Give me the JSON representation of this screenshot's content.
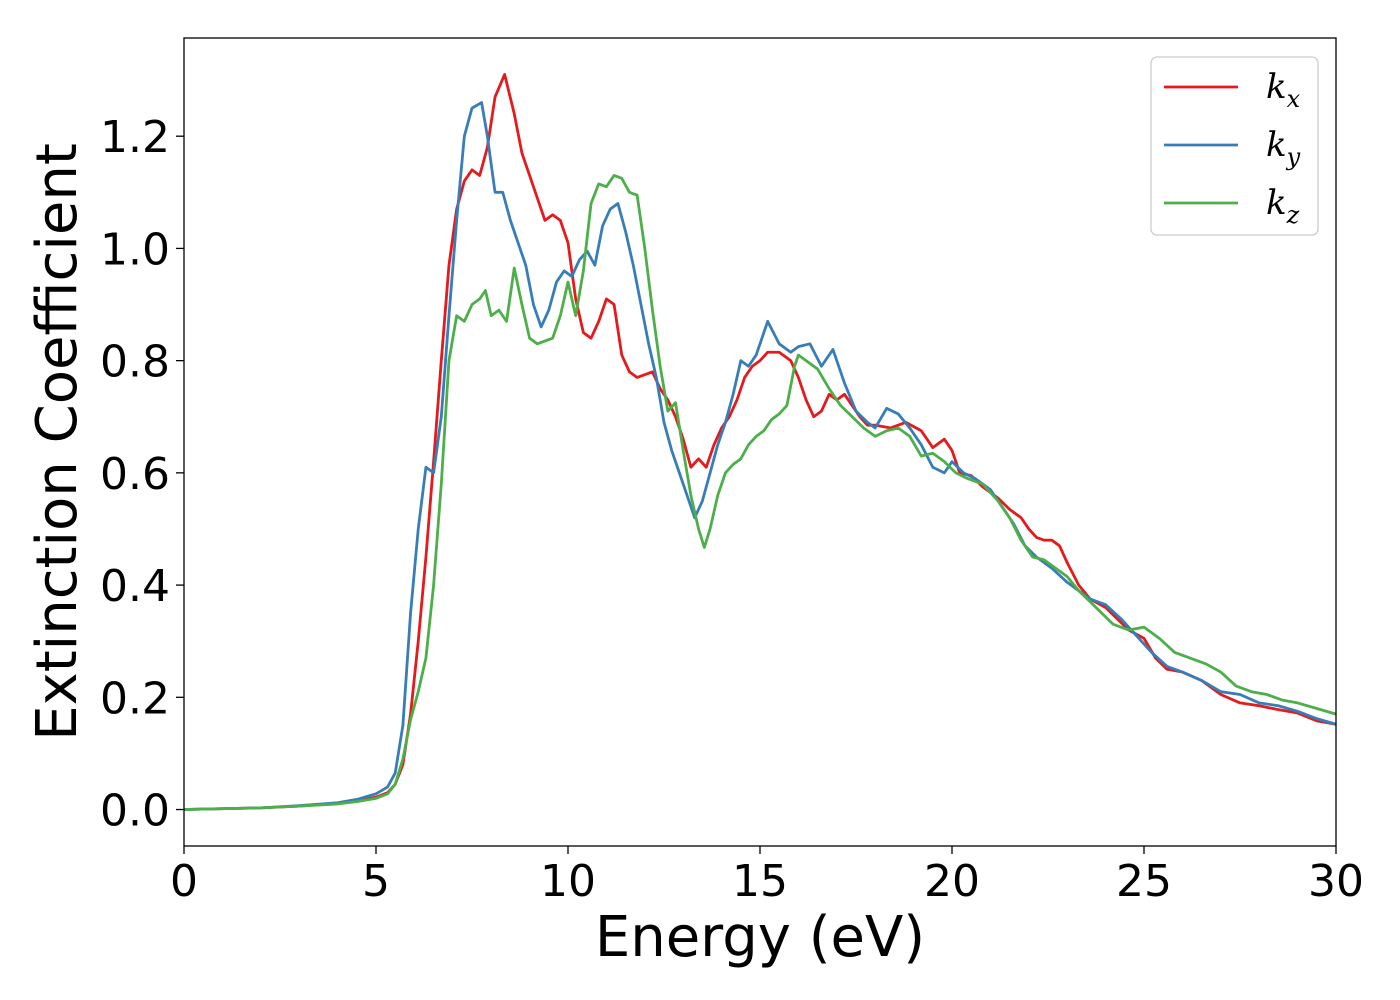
{
  "chart_data": {
    "type": "line",
    "xlabel": "Energy (eV)",
    "ylabel": "Extinction Coefficient",
    "xlim": [
      0,
      30
    ],
    "ylim": [
      -0.065,
      1.375
    ],
    "xticks": [
      0,
      5,
      10,
      15,
      20,
      25,
      30
    ],
    "yticks": [
      0.0,
      0.2,
      0.4,
      0.6,
      0.8,
      1.0,
      1.2
    ],
    "xtick_labels": [
      "0",
      "5",
      "10",
      "15",
      "20",
      "25",
      "30"
    ],
    "ytick_labels": [
      "0.0",
      "0.2",
      "0.4",
      "0.6",
      "0.8",
      "1.0",
      "1.2"
    ],
    "grid": false,
    "legend_position": "top-right",
    "series": [
      {
        "name": "k",
        "subscript": "x",
        "color": "#e41a1c",
        "points": [
          [
            0,
            0.0
          ],
          [
            2,
            0.003
          ],
          [
            3,
            0.006
          ],
          [
            4,
            0.011
          ],
          [
            4.5,
            0.015
          ],
          [
            5,
            0.022
          ],
          [
            5.3,
            0.03
          ],
          [
            5.5,
            0.045
          ],
          [
            5.7,
            0.08
          ],
          [
            5.9,
            0.17
          ],
          [
            6.1,
            0.3
          ],
          [
            6.3,
            0.45
          ],
          [
            6.5,
            0.62
          ],
          [
            6.7,
            0.8
          ],
          [
            6.9,
            0.97
          ],
          [
            7.1,
            1.07
          ],
          [
            7.3,
            1.12
          ],
          [
            7.5,
            1.14
          ],
          [
            7.7,
            1.13
          ],
          [
            7.9,
            1.18
          ],
          [
            8.1,
            1.27
          ],
          [
            8.35,
            1.31
          ],
          [
            8.6,
            1.24
          ],
          [
            8.8,
            1.17
          ],
          [
            9.0,
            1.13
          ],
          [
            9.2,
            1.09
          ],
          [
            9.4,
            1.05
          ],
          [
            9.6,
            1.06
          ],
          [
            9.8,
            1.05
          ],
          [
            10.0,
            1.01
          ],
          [
            10.2,
            0.91
          ],
          [
            10.4,
            0.85
          ],
          [
            10.6,
            0.84
          ],
          [
            10.8,
            0.87
          ],
          [
            11.0,
            0.91
          ],
          [
            11.2,
            0.9
          ],
          [
            11.4,
            0.81
          ],
          [
            11.6,
            0.78
          ],
          [
            11.8,
            0.77
          ],
          [
            12.0,
            0.775
          ],
          [
            12.2,
            0.78
          ],
          [
            12.4,
            0.75
          ],
          [
            12.6,
            0.73
          ],
          [
            12.8,
            0.7
          ],
          [
            13.0,
            0.66
          ],
          [
            13.2,
            0.61
          ],
          [
            13.4,
            0.625
          ],
          [
            13.6,
            0.61
          ],
          [
            13.8,
            0.65
          ],
          [
            14.0,
            0.68
          ],
          [
            14.2,
            0.7
          ],
          [
            14.4,
            0.73
          ],
          [
            14.6,
            0.77
          ],
          [
            14.8,
            0.79
          ],
          [
            15.0,
            0.8
          ],
          [
            15.2,
            0.815
          ],
          [
            15.5,
            0.815
          ],
          [
            15.8,
            0.8
          ],
          [
            16.0,
            0.77
          ],
          [
            16.2,
            0.73
          ],
          [
            16.4,
            0.7
          ],
          [
            16.6,
            0.71
          ],
          [
            16.8,
            0.74
          ],
          [
            17.0,
            0.73
          ],
          [
            17.2,
            0.74
          ],
          [
            17.4,
            0.72
          ],
          [
            17.6,
            0.7
          ],
          [
            17.8,
            0.685
          ],
          [
            18.0,
            0.685
          ],
          [
            18.4,
            0.68
          ],
          [
            18.8,
            0.69
          ],
          [
            19.2,
            0.675
          ],
          [
            19.5,
            0.645
          ],
          [
            19.8,
            0.66
          ],
          [
            20.0,
            0.64
          ],
          [
            20.2,
            0.6
          ],
          [
            20.5,
            0.595
          ],
          [
            20.8,
            0.575
          ],
          [
            21.2,
            0.555
          ],
          [
            21.5,
            0.535
          ],
          [
            21.8,
            0.52
          ],
          [
            22.0,
            0.5
          ],
          [
            22.2,
            0.485
          ],
          [
            22.4,
            0.48
          ],
          [
            22.6,
            0.48
          ],
          [
            22.8,
            0.47
          ],
          [
            23.0,
            0.44
          ],
          [
            23.3,
            0.4
          ],
          [
            23.6,
            0.375
          ],
          [
            24.0,
            0.36
          ],
          [
            24.3,
            0.34
          ],
          [
            24.6,
            0.32
          ],
          [
            25.0,
            0.305
          ],
          [
            25.3,
            0.27
          ],
          [
            25.6,
            0.25
          ],
          [
            26.0,
            0.245
          ],
          [
            26.5,
            0.23
          ],
          [
            27.0,
            0.205
          ],
          [
            27.5,
            0.19
          ],
          [
            28.0,
            0.185
          ],
          [
            28.5,
            0.178
          ],
          [
            29.0,
            0.172
          ],
          [
            29.5,
            0.158
          ],
          [
            30.0,
            0.152
          ]
        ]
      },
      {
        "name": "k",
        "subscript": "y",
        "color": "#377eb8",
        "points": [
          [
            0,
            0.0
          ],
          [
            2,
            0.003
          ],
          [
            3,
            0.007
          ],
          [
            4,
            0.012
          ],
          [
            4.5,
            0.018
          ],
          [
            5,
            0.028
          ],
          [
            5.3,
            0.04
          ],
          [
            5.5,
            0.065
          ],
          [
            5.7,
            0.15
          ],
          [
            5.9,
            0.35
          ],
          [
            6.1,
            0.5
          ],
          [
            6.3,
            0.61
          ],
          [
            6.5,
            0.6
          ],
          [
            6.7,
            0.7
          ],
          [
            6.9,
            0.88
          ],
          [
            7.1,
            1.05
          ],
          [
            7.3,
            1.2
          ],
          [
            7.5,
            1.25
          ],
          [
            7.75,
            1.26
          ],
          [
            7.9,
            1.2
          ],
          [
            8.1,
            1.1
          ],
          [
            8.3,
            1.1
          ],
          [
            8.5,
            1.05
          ],
          [
            8.7,
            1.01
          ],
          [
            8.9,
            0.97
          ],
          [
            9.1,
            0.9
          ],
          [
            9.3,
            0.86
          ],
          [
            9.5,
            0.89
          ],
          [
            9.7,
            0.94
          ],
          [
            9.9,
            0.96
          ],
          [
            10.1,
            0.95
          ],
          [
            10.3,
            0.98
          ],
          [
            10.5,
            0.995
          ],
          [
            10.7,
            0.97
          ],
          [
            10.9,
            1.04
          ],
          [
            11.1,
            1.07
          ],
          [
            11.3,
            1.08
          ],
          [
            11.5,
            1.03
          ],
          [
            11.7,
            0.97
          ],
          [
            11.9,
            0.9
          ],
          [
            12.1,
            0.83
          ],
          [
            12.3,
            0.77
          ],
          [
            12.5,
            0.69
          ],
          [
            12.7,
            0.64
          ],
          [
            12.9,
            0.6
          ],
          [
            13.1,
            0.56
          ],
          [
            13.3,
            0.52
          ],
          [
            13.5,
            0.55
          ],
          [
            13.7,
            0.6
          ],
          [
            13.9,
            0.65
          ],
          [
            14.1,
            0.69
          ],
          [
            14.3,
            0.74
          ],
          [
            14.5,
            0.8
          ],
          [
            14.7,
            0.79
          ],
          [
            14.9,
            0.81
          ],
          [
            15.2,
            0.87
          ],
          [
            15.5,
            0.83
          ],
          [
            15.8,
            0.815
          ],
          [
            16.0,
            0.825
          ],
          [
            16.3,
            0.83
          ],
          [
            16.6,
            0.79
          ],
          [
            16.9,
            0.82
          ],
          [
            17.2,
            0.76
          ],
          [
            17.5,
            0.71
          ],
          [
            17.8,
            0.69
          ],
          [
            18.0,
            0.68
          ],
          [
            18.3,
            0.715
          ],
          [
            18.6,
            0.705
          ],
          [
            18.9,
            0.68
          ],
          [
            19.2,
            0.65
          ],
          [
            19.5,
            0.61
          ],
          [
            19.8,
            0.6
          ],
          [
            20.0,
            0.62
          ],
          [
            20.3,
            0.6
          ],
          [
            20.6,
            0.59
          ],
          [
            21.0,
            0.57
          ],
          [
            21.3,
            0.54
          ],
          [
            21.6,
            0.51
          ],
          [
            21.9,
            0.47
          ],
          [
            22.2,
            0.45
          ],
          [
            22.6,
            0.43
          ],
          [
            23.0,
            0.405
          ],
          [
            23.3,
            0.39
          ],
          [
            23.6,
            0.375
          ],
          [
            24.0,
            0.365
          ],
          [
            24.4,
            0.34
          ],
          [
            24.8,
            0.31
          ],
          [
            25.2,
            0.28
          ],
          [
            25.6,
            0.255
          ],
          [
            26.0,
            0.245
          ],
          [
            26.5,
            0.23
          ],
          [
            27.0,
            0.21
          ],
          [
            27.5,
            0.205
          ],
          [
            28.0,
            0.19
          ],
          [
            28.5,
            0.185
          ],
          [
            29.0,
            0.175
          ],
          [
            29.5,
            0.162
          ],
          [
            30.0,
            0.152
          ]
        ]
      },
      {
        "name": "k",
        "subscript": "z",
        "color": "#4daf4a",
        "points": [
          [
            0,
            0.0
          ],
          [
            2,
            0.003
          ],
          [
            3,
            0.006
          ],
          [
            4,
            0.01
          ],
          [
            4.5,
            0.014
          ],
          [
            5,
            0.02
          ],
          [
            5.3,
            0.028
          ],
          [
            5.5,
            0.045
          ],
          [
            5.7,
            0.09
          ],
          [
            5.9,
            0.16
          ],
          [
            6.1,
            0.21
          ],
          [
            6.3,
            0.27
          ],
          [
            6.5,
            0.4
          ],
          [
            6.7,
            0.58
          ],
          [
            6.9,
            0.8
          ],
          [
            7.1,
            0.88
          ],
          [
            7.3,
            0.87
          ],
          [
            7.5,
            0.9
          ],
          [
            7.7,
            0.91
          ],
          [
            7.85,
            0.925
          ],
          [
            8.0,
            0.88
          ],
          [
            8.2,
            0.89
          ],
          [
            8.4,
            0.87
          ],
          [
            8.6,
            0.965
          ],
          [
            8.8,
            0.9
          ],
          [
            9.0,
            0.84
          ],
          [
            9.2,
            0.83
          ],
          [
            9.4,
            0.835
          ],
          [
            9.6,
            0.84
          ],
          [
            9.8,
            0.88
          ],
          [
            10.0,
            0.94
          ],
          [
            10.2,
            0.88
          ],
          [
            10.4,
            0.96
          ],
          [
            10.6,
            1.08
          ],
          [
            10.8,
            1.115
          ],
          [
            11.0,
            1.11
          ],
          [
            11.2,
            1.13
          ],
          [
            11.4,
            1.125
          ],
          [
            11.6,
            1.1
          ],
          [
            11.8,
            1.095
          ],
          [
            12.0,
            1.0
          ],
          [
            12.2,
            0.89
          ],
          [
            12.4,
            0.79
          ],
          [
            12.6,
            0.71
          ],
          [
            12.8,
            0.725
          ],
          [
            13.0,
            0.64
          ],
          [
            13.2,
            0.56
          ],
          [
            13.4,
            0.5
          ],
          [
            13.55,
            0.467
          ],
          [
            13.7,
            0.5
          ],
          [
            13.9,
            0.56
          ],
          [
            14.1,
            0.6
          ],
          [
            14.3,
            0.615
          ],
          [
            14.5,
            0.625
          ],
          [
            14.7,
            0.65
          ],
          [
            14.9,
            0.665
          ],
          [
            15.1,
            0.675
          ],
          [
            15.3,
            0.695
          ],
          [
            15.5,
            0.705
          ],
          [
            15.7,
            0.72
          ],
          [
            15.9,
            0.79
          ],
          [
            16.0,
            0.81
          ],
          [
            16.2,
            0.8
          ],
          [
            16.5,
            0.785
          ],
          [
            16.8,
            0.75
          ],
          [
            17.1,
            0.72
          ],
          [
            17.4,
            0.7
          ],
          [
            17.7,
            0.68
          ],
          [
            18.0,
            0.665
          ],
          [
            18.3,
            0.675
          ],
          [
            18.6,
            0.68
          ],
          [
            18.9,
            0.665
          ],
          [
            19.2,
            0.63
          ],
          [
            19.5,
            0.635
          ],
          [
            19.8,
            0.62
          ],
          [
            20.1,
            0.6
          ],
          [
            20.4,
            0.59
          ],
          [
            20.8,
            0.58
          ],
          [
            21.2,
            0.55
          ],
          [
            21.5,
            0.52
          ],
          [
            21.8,
            0.48
          ],
          [
            22.1,
            0.45
          ],
          [
            22.4,
            0.445
          ],
          [
            22.7,
            0.43
          ],
          [
            23.0,
            0.415
          ],
          [
            23.3,
            0.39
          ],
          [
            23.6,
            0.37
          ],
          [
            23.9,
            0.35
          ],
          [
            24.2,
            0.33
          ],
          [
            24.6,
            0.32
          ],
          [
            25.0,
            0.325
          ],
          [
            25.4,
            0.305
          ],
          [
            25.8,
            0.28
          ],
          [
            26.2,
            0.27
          ],
          [
            26.6,
            0.26
          ],
          [
            27.0,
            0.245
          ],
          [
            27.4,
            0.22
          ],
          [
            27.8,
            0.21
          ],
          [
            28.2,
            0.205
          ],
          [
            28.6,
            0.195
          ],
          [
            29.0,
            0.19
          ],
          [
            29.5,
            0.18
          ],
          [
            30.0,
            0.17
          ]
        ]
      }
    ]
  }
}
